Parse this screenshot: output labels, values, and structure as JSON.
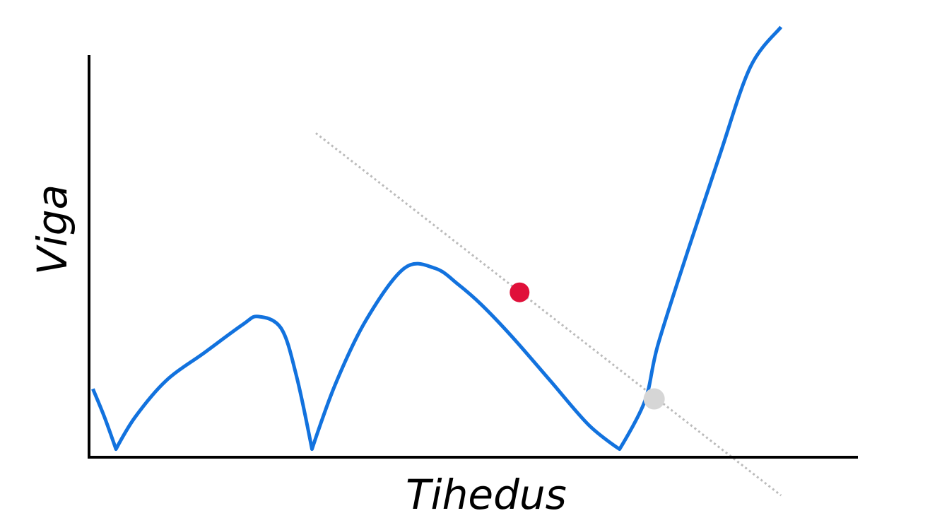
{
  "chart_data": {
    "type": "line",
    "title": "",
    "xlabel": "Tihedus",
    "ylabel": "Viga",
    "xlim": [
      0,
      1
    ],
    "ylim": [
      0,
      1
    ],
    "grid": false,
    "legend": "none",
    "series": [
      {
        "x": [
          0.005,
          0.02,
          0.035,
          0.06,
          0.1,
          0.15,
          0.2,
          0.22,
          0.25,
          0.27,
          0.29,
          0.32,
          0.36,
          0.41,
          0.45,
          0.48,
          0.51,
          0.55,
          0.6,
          0.65,
          0.69,
          0.723,
          0.74,
          0.78,
          0.82,
          0.86,
          0.9
        ],
        "y": [
          0.17,
          0.1,
          0.02,
          0.1,
          0.19,
          0.26,
          0.33,
          0.35,
          0.32,
          0.2,
          0.02,
          0.18,
          0.34,
          0.47,
          0.47,
          0.43,
          0.38,
          0.3,
          0.19,
          0.08,
          0.02,
          0.14,
          0.28,
          0.52,
          0.75,
          0.97,
          1.07
        ]
      }
    ],
    "tangent_line": {
      "x": [
        0.295,
        0.9
      ],
      "y": [
        0.806,
        -0.095
      ]
    },
    "highlight_point": {
      "x": 0.56,
      "y": 0.41
    },
    "secondary_point": {
      "x": 0.735,
      "y": 0.145
    }
  },
  "colors": {
    "curve": "#1272de",
    "axis": "#000000",
    "tangent": "#bbbbbb",
    "highlight": "#e0103a",
    "secondary": "#d6d6d6"
  }
}
